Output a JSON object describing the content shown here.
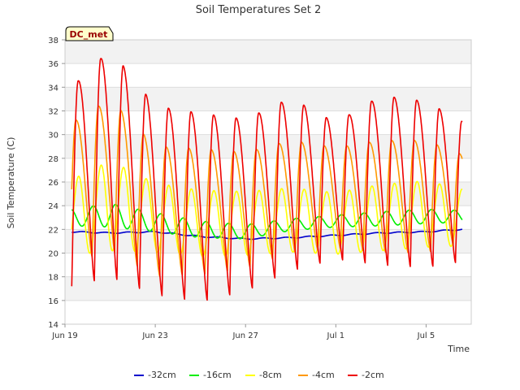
{
  "chart_data": {
    "type": "line",
    "title": "Soil Temperatures Set 2",
    "xlabel": "Time",
    "ylabel": "Soil Temperature (C)",
    "badge": "DC_met",
    "x_ticks": [
      "Jun 19",
      "Jun 23",
      "Jun 27",
      "Jul 1",
      "Jul 5"
    ],
    "x_tick_days": [
      0,
      4,
      8,
      12,
      16
    ],
    "x_range_days": [
      0,
      18
    ],
    "ylim": [
      14,
      38
    ],
    "y_ticks": [
      14,
      16,
      18,
      20,
      22,
      24,
      26,
      28,
      30,
      32,
      34,
      36,
      38
    ],
    "grid": "horizontal bands",
    "legend_position": "bottom",
    "series_days": [
      0.3,
      17.6
    ],
    "series": [
      {
        "name": "-32cm",
        "color": "#0000cc",
        "waveform": "smooth",
        "phase": 0.0,
        "day": [
          0.3,
          2,
          4,
          6,
          8,
          10,
          12,
          14,
          16,
          17.6
        ],
        "mean": [
          21.8,
          21.7,
          21.8,
          21.4,
          21.2,
          21.3,
          21.5,
          21.7,
          21.8,
          22.0
        ],
        "amplitude": [
          0.05,
          0.05,
          0.05,
          0.05,
          0.05,
          0.05,
          0.05,
          0.05,
          0.05,
          0.05
        ]
      },
      {
        "name": "-16cm",
        "color": "#00ee00",
        "waveform": "smooth",
        "phase": 0.55,
        "day": [
          0.3,
          2,
          4,
          6,
          8,
          10,
          12,
          14,
          16,
          17.6
        ],
        "mean": [
          23.0,
          23.2,
          22.6,
          22.0,
          21.8,
          22.4,
          22.7,
          22.9,
          23.1,
          23.1
        ],
        "amplitude": [
          0.7,
          1.0,
          0.8,
          0.7,
          0.6,
          0.5,
          0.5,
          0.6,
          0.6,
          0.5
        ]
      },
      {
        "name": "-8cm",
        "color": "#ffff00",
        "waveform": "smooth",
        "phase": 0.2,
        "day": [
          0.3,
          2,
          4,
          6,
          8,
          10,
          12,
          14,
          16,
          17.6
        ],
        "mean": [
          23.0,
          24.0,
          23.0,
          22.5,
          22.5,
          22.8,
          22.5,
          23.0,
          23.3,
          23.0
        ],
        "amplitude": [
          3.2,
          3.8,
          2.9,
          2.8,
          2.7,
          2.7,
          2.6,
          2.8,
          2.8,
          2.4
        ]
      },
      {
        "name": "-4cm",
        "color": "#ff9900",
        "waveform": "peaked",
        "phase": 0.1,
        "day": [
          0.3,
          2,
          4,
          6,
          8,
          10,
          12,
          14,
          16,
          17.6
        ],
        "trough": [
          19.0,
          20.3,
          18.0,
          18.2,
          18.7,
          20.0,
          20.4,
          20.1,
          20.0,
          21.0
        ],
        "peak": [
          31.0,
          33.0,
          29.0,
          28.8,
          28.5,
          29.5,
          28.9,
          29.5,
          29.5,
          28.3
        ]
      },
      {
        "name": "-2cm",
        "color": "#ee0000",
        "waveform": "peaked",
        "phase": 0.0,
        "day": [
          0.3,
          2,
          4,
          6,
          8,
          10,
          12,
          14,
          16,
          17.6
        ],
        "trough": [
          17.2,
          18.0,
          16.5,
          15.9,
          16.8,
          18.5,
          19.5,
          19.0,
          18.8,
          19.3
        ],
        "peak": [
          34.0,
          37.2,
          32.4,
          31.8,
          31.3,
          33.1,
          31.0,
          33.3,
          32.8,
          31.1
        ]
      }
    ]
  }
}
